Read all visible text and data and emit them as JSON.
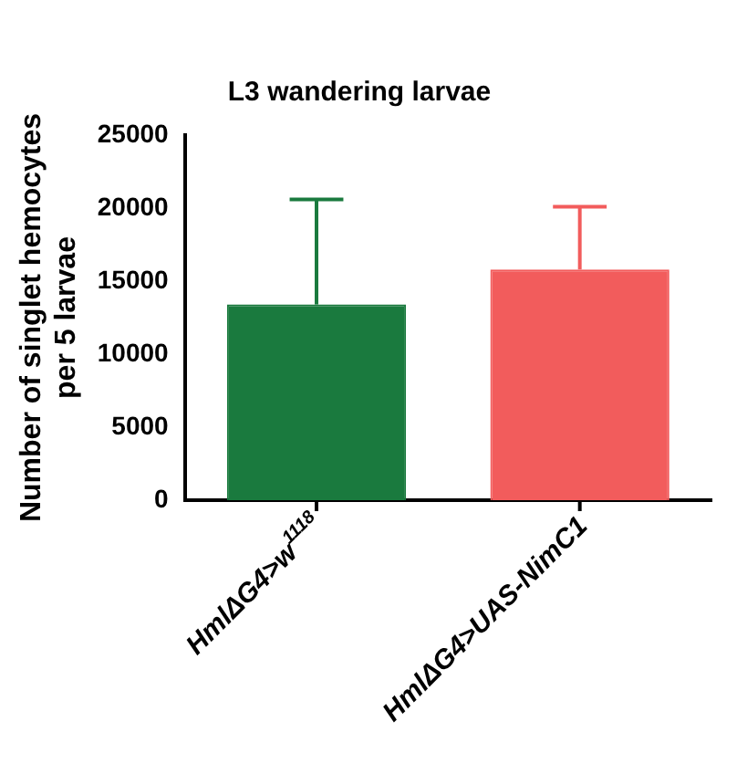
{
  "chart_data": {
    "type": "bar",
    "title": "L3 wandering larvae",
    "ylabel": "Number of singlet hemocytes per 5 larvae",
    "categories": [
      "HmlΔG4>w$^{1118}$",
      "HmlΔG4>UAS-NimC1"
    ],
    "values": [
      13400,
      15800
    ],
    "colors": [
      "#1a7a3e",
      "#f25c5c"
    ],
    "errors": [
      [
        13400,
        20600
      ],
      [
        15800,
        20100
      ]
    ],
    "ylim": [
      0,
      25000
    ],
    "yticks": [
      0,
      5000,
      10000,
      15000,
      20000,
      25000
    ],
    "grid": false,
    "legend": false
  }
}
